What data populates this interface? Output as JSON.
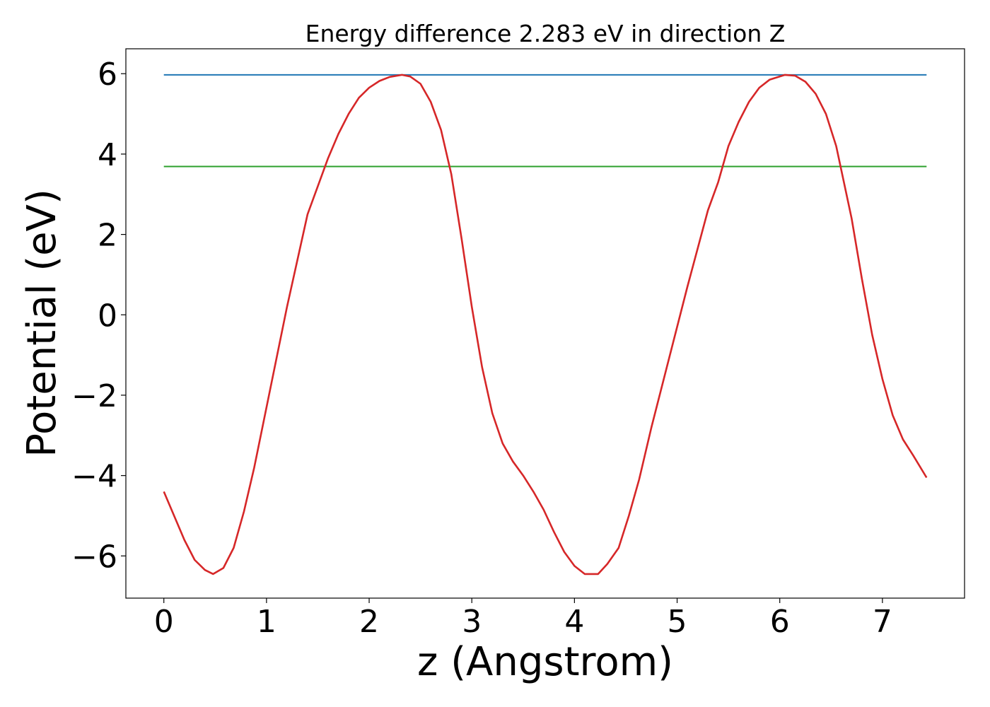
{
  "chart_data": {
    "type": "line",
    "title": "Energy difference 2.283 eV in direction Z",
    "xlabel": "z (Angstrom)",
    "ylabel": "Potential (eV)",
    "xlim": [
      -0.37,
      7.8
    ],
    "ylim": [
      -7.05,
      6.62
    ],
    "grid": false,
    "xticks": [
      0,
      1,
      2,
      3,
      4,
      5,
      6,
      7
    ],
    "xtick_labels": [
      "0",
      "1",
      "2",
      "3",
      "4",
      "5",
      "6",
      "7"
    ],
    "yticks": [
      -6,
      -4,
      -2,
      0,
      2,
      4,
      6
    ],
    "ytick_labels": [
      "−6",
      "−4",
      "−2",
      "0",
      "2",
      "4",
      "6"
    ],
    "series": [
      {
        "color": "#1f77b4",
        "x": [
          0,
          7.43
        ],
        "y": [
          5.97,
          5.97
        ]
      },
      {
        "color": "#2ca02c",
        "x": [
          0,
          7.43
        ],
        "y": [
          3.69,
          3.69
        ]
      },
      {
        "color": "#d62728",
        "x": [
          0,
          0.1,
          0.2,
          0.3,
          0.4,
          0.48,
          0.58,
          0.68,
          0.78,
          0.88,
          1.0,
          1.2,
          1.4,
          1.6,
          1.7,
          1.8,
          1.9,
          2.0,
          2.1,
          2.2,
          2.32,
          2.4,
          2.5,
          2.6,
          2.7,
          2.8,
          2.9,
          3.0,
          3.1,
          3.2,
          3.3,
          3.4,
          3.5,
          3.6,
          3.7,
          3.8,
          3.9,
          4.0,
          4.1,
          4.23,
          4.32,
          4.43,
          4.53,
          4.63,
          4.75,
          4.9,
          5.1,
          5.3,
          5.4,
          5.5,
          5.6,
          5.7,
          5.8,
          5.9,
          6.05,
          6.15,
          6.25,
          6.35,
          6.45,
          6.55,
          6.7,
          6.8,
          6.9,
          7.0,
          7.1,
          7.2,
          7.3,
          7.43
        ],
        "y": [
          -4.4,
          -5.0,
          -5.6,
          -6.1,
          -6.35,
          -6.45,
          -6.3,
          -5.8,
          -4.9,
          -3.8,
          -2.3,
          0.2,
          2.5,
          3.9,
          4.5,
          5.0,
          5.4,
          5.65,
          5.82,
          5.92,
          5.97,
          5.93,
          5.75,
          5.3,
          4.6,
          3.5,
          1.9,
          0.2,
          -1.3,
          -2.45,
          -3.2,
          -3.65,
          -4.0,
          -4.4,
          -4.85,
          -5.4,
          -5.9,
          -6.25,
          -6.45,
          -6.45,
          -6.2,
          -5.8,
          -5.0,
          -4.1,
          -2.8,
          -1.3,
          0.7,
          2.6,
          3.3,
          4.2,
          4.8,
          5.3,
          5.65,
          5.85,
          5.97,
          5.95,
          5.8,
          5.5,
          5.0,
          4.2,
          2.4,
          0.9,
          -0.5,
          -1.6,
          -2.5,
          -3.1,
          -3.5,
          -4.05
        ]
      }
    ]
  }
}
